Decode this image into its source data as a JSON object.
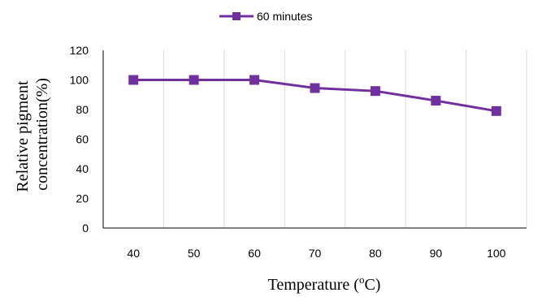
{
  "chart_data": {
    "type": "line",
    "x": [
      40,
      50,
      60,
      70,
      80,
      90,
      100
    ],
    "series": [
      {
        "name": "60  minutes",
        "values": [
          100,
          100,
          100,
          94.5,
          92.5,
          86,
          79
        ],
        "color": "#7030A0",
        "marker": "square"
      }
    ],
    "xlabel": {
      "prefix": "Temperature (",
      "sup": "o",
      "suffix": "C)"
    },
    "ylabel": {
      "line1": "Relative pigment",
      "line2": "concentration(%)"
    },
    "ylim": [
      0,
      120
    ],
    "yticks": [
      "0",
      "20",
      "40",
      "60",
      "80",
      "100",
      "120"
    ],
    "xticks": [
      "40",
      "50",
      "60",
      "70",
      "80",
      "90",
      "100"
    ],
    "grid": "vertical",
    "legend": "top-center"
  }
}
